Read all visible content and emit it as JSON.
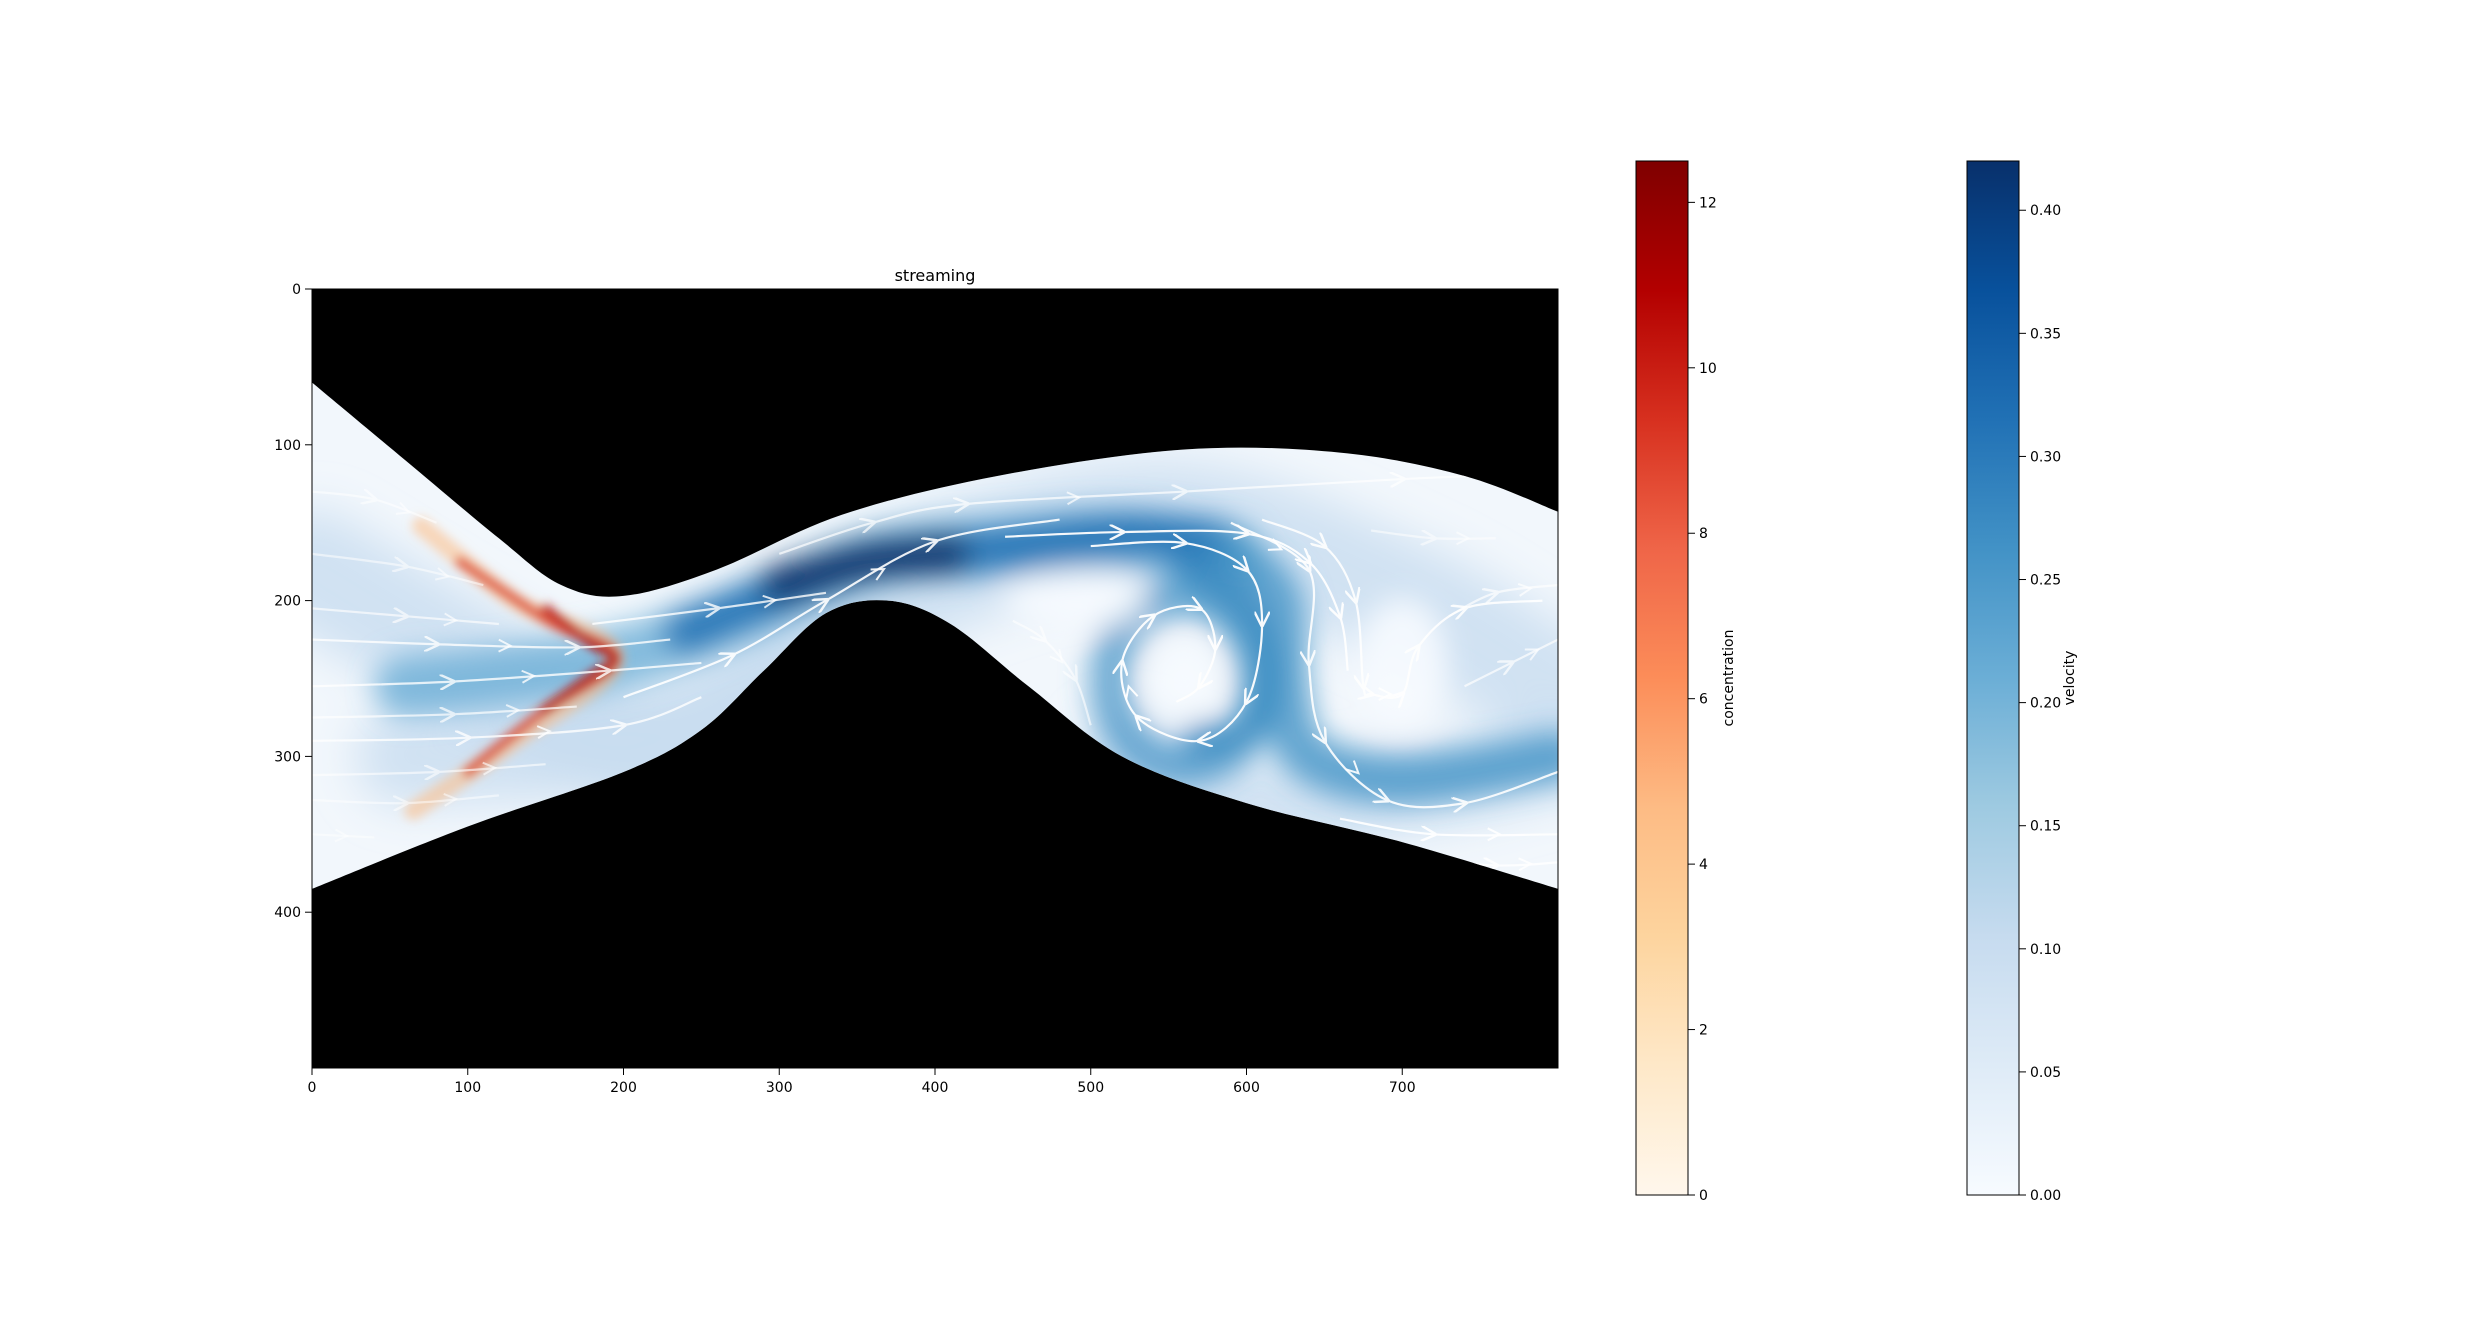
{
  "chart_data": {
    "type": "heatmap",
    "title": "streaming",
    "image": {
      "xlim": [
        0,
        800
      ],
      "ylim_inverted": [
        500,
        0
      ],
      "xticks": [
        "0",
        "100",
        "200",
        "300",
        "400",
        "500",
        "600",
        "700"
      ],
      "yticks": [
        "0",
        "100",
        "200",
        "300",
        "400"
      ],
      "background": "#000000",
      "fields": [
        "concentration",
        "velocity",
        "streamlines"
      ]
    },
    "channel": {
      "top_wall": [
        [
          0,
          60
        ],
        [
          60,
          110
        ],
        [
          120,
          160
        ],
        [
          160,
          190
        ],
        [
          200,
          197
        ],
        [
          260,
          180
        ],
        [
          340,
          145
        ],
        [
          440,
          120
        ],
        [
          560,
          103
        ],
        [
          660,
          105
        ],
        [
          740,
          120
        ],
        [
          800,
          143
        ]
      ],
      "bottom_wall": [
        [
          0,
          385
        ],
        [
          100,
          345
        ],
        [
          200,
          310
        ],
        [
          250,
          283
        ],
        [
          290,
          245
        ],
        [
          330,
          208
        ],
        [
          370,
          200
        ],
        [
          410,
          215
        ],
        [
          460,
          255
        ],
        [
          520,
          300
        ],
        [
          600,
          330
        ],
        [
          700,
          355
        ],
        [
          800,
          385
        ]
      ]
    },
    "concentration_plume": {
      "peak": [
        195,
        237
      ],
      "upper_arm_end": [
        70,
        152
      ],
      "lower_arm_end": [
        65,
        335
      ],
      "max_value": 12.5
    },
    "velocity_features": {
      "jet_peak": [
        355,
        175
      ],
      "vortex_center": [
        560,
        252
      ]
    },
    "colorbars": [
      {
        "label": "concentration",
        "colormap": "OrRd",
        "range": [
          0,
          12.5
        ],
        "ticks": [
          "0",
          "2",
          "4",
          "6",
          "8",
          "10",
          "12"
        ],
        "tick_values": [
          0,
          2,
          4,
          6,
          8,
          10,
          12
        ],
        "stops": [
          "#fff7ec",
          "#fee8c8",
          "#fdd49e",
          "#fdbb84",
          "#fc8d59",
          "#ef6548",
          "#d7301f",
          "#b30000",
          "#7f0000"
        ]
      },
      {
        "label": "velocity",
        "colormap": "Blues",
        "range": [
          0,
          0.42
        ],
        "ticks": [
          "0.00",
          "0.05",
          "0.10",
          "0.15",
          "0.20",
          "0.25",
          "0.30",
          "0.35",
          "0.40"
        ],
        "tick_values": [
          0,
          0.05,
          0.1,
          0.15,
          0.2,
          0.25,
          0.3,
          0.35,
          0.4
        ],
        "stops": [
          "#f7fbff",
          "#deebf7",
          "#c6dbef",
          "#9ecae1",
          "#6baed6",
          "#4292c6",
          "#2171b5",
          "#08519c",
          "#08306b"
        ]
      }
    ]
  }
}
